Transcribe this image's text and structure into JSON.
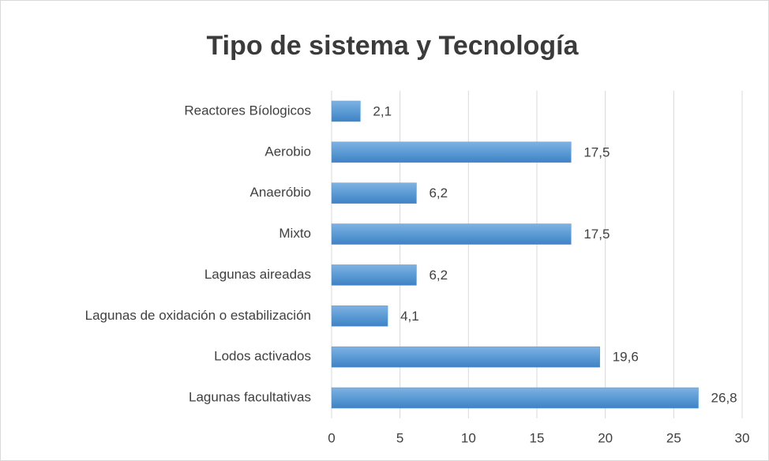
{
  "chart_data": {
    "type": "bar",
    "orientation": "horizontal",
    "title": "Tipo de sistema y Tecnología",
    "categories": [
      "Reactores Bíologicos",
      "Aerobio",
      "Anaeróbio",
      "Mixto",
      "Lagunas aireadas",
      "Lagunas de oxidación o estabilización",
      "Lodos activados",
      "Lagunas facultativas"
    ],
    "values": [
      2.1,
      17.5,
      6.2,
      17.5,
      6.2,
      4.1,
      19.6,
      26.8
    ],
    "value_labels": [
      "2,1",
      "17,5",
      "6,2",
      "17,5",
      "6,2",
      "4,1",
      "19,6",
      "26,8"
    ],
    "color": "#5b9bd5",
    "xlim": [
      0,
      30
    ],
    "xticks": [
      0,
      5,
      10,
      15,
      20,
      25,
      30
    ],
    "grid": true
  }
}
